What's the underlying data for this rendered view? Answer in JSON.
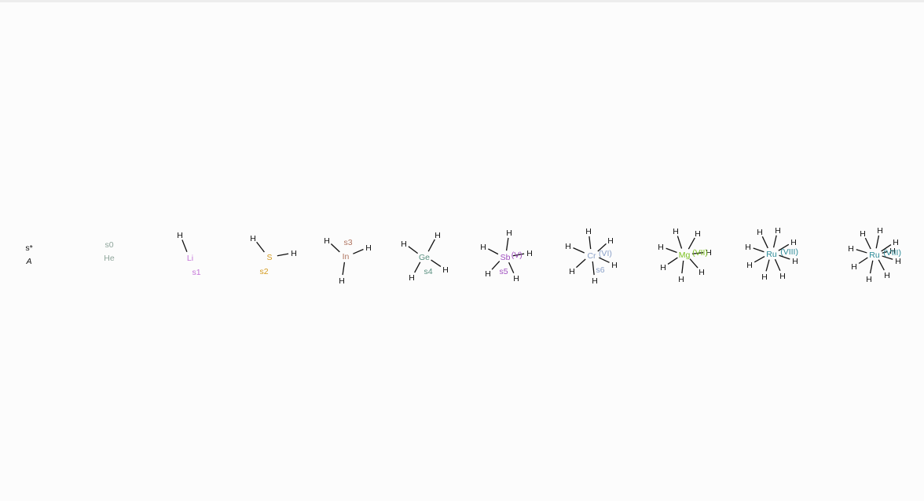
{
  "legend": {
    "symbol": "s*",
    "label": "A"
  },
  "molecules": [
    {
      "id": "s0",
      "atom": "He",
      "color": "#8fa59b",
      "ox": "",
      "label": "s0",
      "h_count": 0
    },
    {
      "id": "s1",
      "atom": "Li",
      "color": "#c474d8",
      "ox": "",
      "label": "s1",
      "h_count": 1
    },
    {
      "id": "s2",
      "atom": "S",
      "color": "#d49a1e",
      "ox": "",
      "label": "s2",
      "h_count": 2
    },
    {
      "id": "s3",
      "atom": "In",
      "color": "#b07460",
      "ox": "",
      "label": "s3",
      "h_count": 3
    },
    {
      "id": "s4",
      "atom": "Ge",
      "color": "#5a9080",
      "ox": "",
      "label": "s4",
      "h_count": 4
    },
    {
      "id": "s5",
      "atom": "Sb",
      "color": "#a050c0",
      "ox": "(V)",
      "label": "s5",
      "h_count": 5
    },
    {
      "id": "s6",
      "atom": "Cr",
      "color": "#8aa0c8",
      "ox": "(VI)",
      "label": "s6",
      "h_count": 6
    },
    {
      "id": "s7",
      "atom": "Mg",
      "color": "#7cc020",
      "ox": "(VII)",
      "label": "",
      "h_count": 7
    },
    {
      "id": "s8",
      "atom": "Ru",
      "color": "#2a8a98",
      "ox": "(VIII)",
      "label": "",
      "h_count": 8
    },
    {
      "id": "s9",
      "atom": "Ru",
      "color": "#2a8a98",
      "ox": "(VIII)",
      "label": "",
      "h_count": 9
    }
  ],
  "hydrogen": {
    "symbol": "H",
    "color": "#111111"
  }
}
